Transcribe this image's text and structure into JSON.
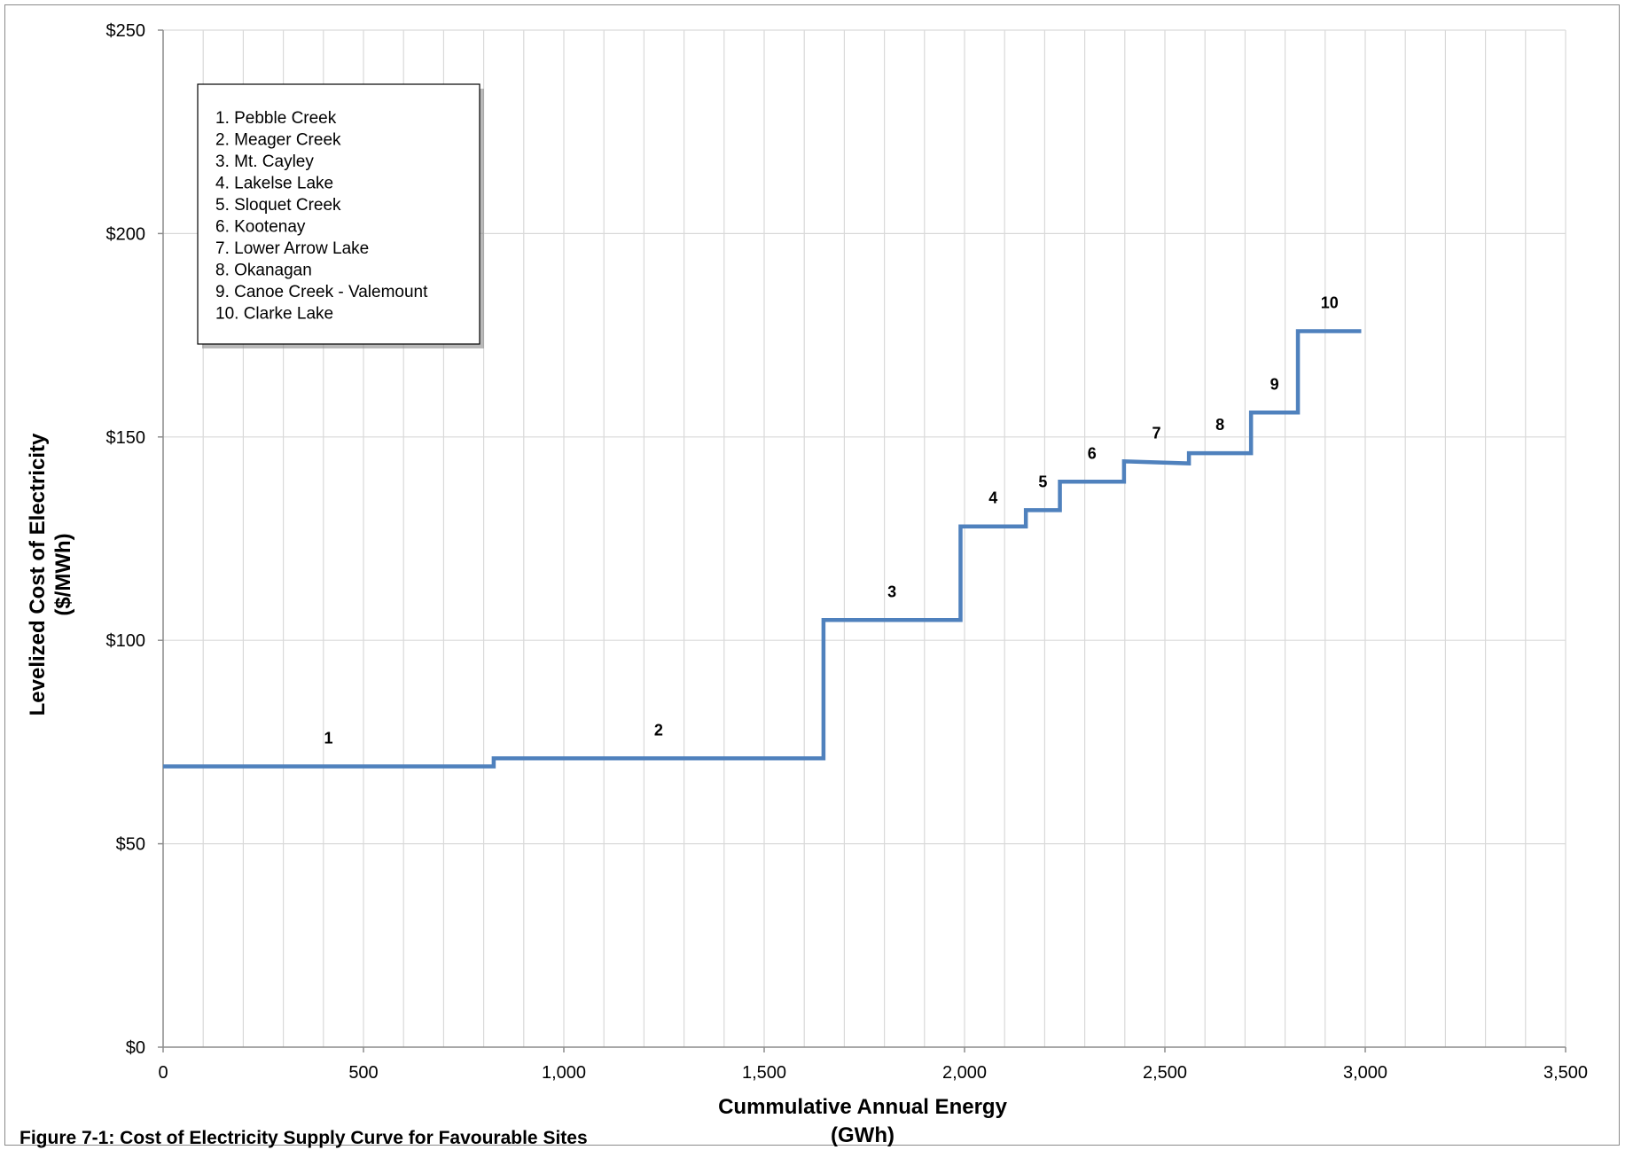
{
  "caption": "Figure 7-1: Cost of Electricity Supply Curve for Favourable Sites",
  "chart_data": {
    "type": "line",
    "subtype": "step",
    "title": "",
    "xlabel": "Cummulative Annual Energy",
    "xlabel_unit": "(GWh)",
    "ylabel": "Levelized Cost of Electricity",
    "ylabel_unit": "($/MWh)",
    "xlim": [
      0,
      3500
    ],
    "ylim": [
      0,
      250
    ],
    "x_ticks": [
      0,
      500,
      1000,
      1500,
      2000,
      2500,
      3000,
      3500
    ],
    "x_tick_labels": [
      "0",
      "500",
      "1,000",
      "1,500",
      "2,000",
      "2,500",
      "3,000",
      "3,500"
    ],
    "y_ticks": [
      0,
      50,
      100,
      150,
      200,
      250
    ],
    "y_tick_labels": [
      "$0",
      "$50",
      "$100",
      "$150",
      "$200",
      "$250"
    ],
    "x_minor_step": 100,
    "grid": true,
    "line_color": "#4f81bd",
    "sites": [
      {
        "label": "1",
        "name": "1. Pebble Creek",
        "x_start": 0,
        "x_end": 825,
        "cost": 69
      },
      {
        "label": "2",
        "name": "2. Meager Creek",
        "x_start": 825,
        "x_end": 1648,
        "cost": 71
      },
      {
        "label": "3",
        "name": "3. Mt. Cayley",
        "x_start": 1648,
        "x_end": 1990,
        "cost": 105
      },
      {
        "label": "4",
        "name": "4. Lakelse Lake",
        "x_start": 1990,
        "x_end": 2153,
        "cost": 128
      },
      {
        "label": "5",
        "name": "5. Sloquet Creek",
        "x_start": 2153,
        "x_end": 2238,
        "cost": 132
      },
      {
        "label": "6",
        "name": "6. Kootenay",
        "x_start": 2238,
        "x_end": 2398,
        "cost": 139
      },
      {
        "label": "7",
        "name": "7. Lower Arrow Lake",
        "x_start": 2398,
        "x_end": 2560,
        "cost": 144,
        "cost_end": 143.5
      },
      {
        "label": "8",
        "name": "8. Okanagan",
        "x_start": 2560,
        "x_end": 2715,
        "cost": 146
      },
      {
        "label": "9",
        "name": "9. Canoe Creek - Valemount",
        "x_start": 2715,
        "x_end": 2832,
        "cost": 156
      },
      {
        "label": "10",
        "name": "10. Clarke Lake",
        "x_start": 2832,
        "x_end": 2990,
        "cost": 176
      }
    ],
    "legend_position": "top-left"
  }
}
